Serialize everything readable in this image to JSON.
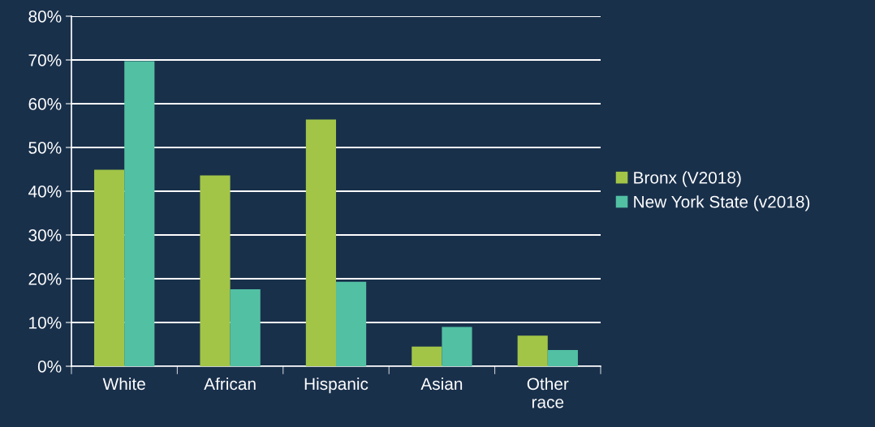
{
  "chart_data": {
    "type": "bar",
    "categories": [
      "White",
      "African",
      "Hispanic",
      "Asian",
      "Other\nrace"
    ],
    "series": [
      {
        "name": "Bronx (V2018)",
        "color": "#a2c547",
        "values": [
          44.9,
          43.6,
          56.4,
          4.5,
          7.0
        ]
      },
      {
        "name": "New York State (v2018)",
        "color": "#52c0a3",
        "values": [
          69.7,
          17.6,
          19.3,
          9.0,
          3.7
        ]
      }
    ],
    "ylim": [
      0,
      80
    ],
    "yticks": [
      {
        "value": 0,
        "label": "0%"
      },
      {
        "value": 10,
        "label": "10%"
      },
      {
        "value": 20,
        "label": "20%"
      },
      {
        "value": 30,
        "label": "30%"
      },
      {
        "value": 40,
        "label": "40%"
      },
      {
        "value": 50,
        "label": "50%"
      },
      {
        "value": 60,
        "label": "60%"
      },
      {
        "value": 70,
        "label": "70%"
      },
      {
        "value": 80,
        "label": "80%"
      }
    ],
    "grid": "y",
    "legend": "right"
  }
}
